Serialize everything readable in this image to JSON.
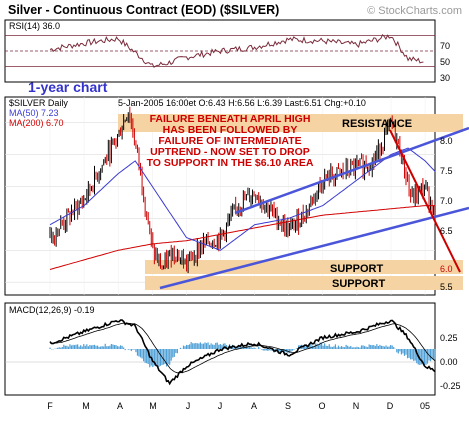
{
  "header": {
    "title": "Silver - Continuous Contract (EOD) ($SILVER)",
    "credit": "© StockCharts.com"
  },
  "rsi": {
    "label": "RSI(14) 36.0",
    "ticks": [
      "70",
      "50",
      "30"
    ],
    "note": "1-year chart"
  },
  "price": {
    "symbol": "$SILVER Daily",
    "quote": "5-Jan-2005 16:00et O:6.43 H:6.56 L:6.39 Last:6.51 Chg:+0.10",
    "ma50": "MA(50) 7.23",
    "ma200": "MA(200) 6.70",
    "ticks": [
      "8.0",
      "7.5",
      "7.0",
      "6.5",
      "6.0",
      "5.5"
    ],
    "annotation_lines": [
      "FAILURE BENEATH APRIL HIGH",
      "HAS BEEN FOLLOWED BY",
      "FAILURE OF INTERMEDIATE",
      "UPTREND - NOW SET TO DROP",
      "TO SUPPORT IN THE $6.10 AREA"
    ],
    "resistance_label": "RESISTANCE",
    "support_label_1": "SUPPORT",
    "support_label_2": "SUPPORT"
  },
  "macd": {
    "label": "MACD(12,26,9) -0.19",
    "ticks": [
      "0.25",
      "0.00",
      "-0.25"
    ]
  },
  "x_axis": {
    "labels": [
      "F",
      "M",
      "A",
      "M",
      "J",
      "J",
      "A",
      "S",
      "O",
      "N",
      "D",
      "05"
    ]
  },
  "colors": {
    "frame": "#000000",
    "title": "#000000",
    "credit": "#9a9a9a",
    "note": "#3333cc",
    "annotation": "#cc0000",
    "band": "#f5d3a3",
    "band_text": "#000000",
    "ma50": "#3b3bd1",
    "ma200": "#d10000",
    "channel": "#4a55d9",
    "rsi_line": "#7a2a3a",
    "rsi_ref": "#7a2a3a",
    "candle": "#000000",
    "candle_down": "#cc0000",
    "macd_hist": "#4d9fd6",
    "macd_line": "#000000"
  },
  "chart_data": [
    {
      "type": "line",
      "title": "RSI(14) 36.0",
      "xlabel": "",
      "ylabel": "",
      "ylim": [
        10,
        90
      ],
      "reference_lines": [
        70,
        50,
        30
      ],
      "x_labels": [
        "F",
        "M",
        "A",
        "M",
        "J",
        "J",
        "A",
        "S",
        "O",
        "N",
        "D",
        "05"
      ],
      "series": [
        {
          "name": "RSI(14)",
          "x": [
            0,
            1,
            2,
            3,
            3.5,
            4,
            5,
            6,
            7,
            8,
            9,
            10,
            10.5,
            11
          ],
          "values": [
            52,
            60,
            66,
            30,
            35,
            42,
            50,
            55,
            65,
            63,
            58,
            70,
            40,
            36
          ]
        }
      ]
    },
    {
      "type": "line",
      "title": "$SILVER Daily",
      "xlabel": "",
      "ylabel": "",
      "ylim": [
        5.3,
        8.4
      ],
      "grid": true,
      "x_labels": [
        "F",
        "M",
        "A",
        "M",
        "J",
        "J",
        "A",
        "S",
        "O",
        "N",
        "D",
        "05"
      ],
      "series": [
        {
          "name": "Price",
          "x": [
            0,
            0.5,
            1,
            1.5,
            2,
            2.3,
            2.6,
            3,
            3.3,
            3.6,
            4,
            4.5,
            5,
            5.5,
            6,
            6.5,
            7,
            7.5,
            8,
            8.5,
            9,
            9.5,
            10,
            10.3,
            10.6,
            11,
            11.3
          ],
          "values": [
            6.2,
            6.5,
            6.8,
            7.3,
            7.8,
            8.2,
            7.4,
            6.0,
            5.7,
            6.0,
            5.8,
            6.1,
            6.2,
            6.7,
            6.9,
            6.6,
            6.3,
            6.6,
            7.1,
            7.2,
            7.3,
            7.4,
            8.0,
            7.5,
            6.8,
            7.0,
            6.5
          ]
        },
        {
          "name": "MA(50) 7.23",
          "x": [
            0,
            1,
            2,
            2.5,
            3,
            4,
            5,
            6,
            7,
            8,
            9,
            10,
            10.5,
            11,
            11.3
          ],
          "values": [
            6.4,
            6.7,
            7.2,
            7.4,
            7.0,
            6.2,
            6.0,
            6.4,
            6.5,
            6.7,
            7.1,
            7.5,
            7.6,
            7.4,
            7.23
          ]
        },
        {
          "name": "MA(200) 6.70",
          "x": [
            0,
            1,
            2,
            3,
            4,
            5,
            6,
            7,
            8,
            9,
            10,
            11,
            11.3
          ],
          "values": [
            5.7,
            5.85,
            6.0,
            6.1,
            6.15,
            6.25,
            6.35,
            6.45,
            6.55,
            6.6,
            6.65,
            6.7,
            6.7
          ]
        }
      ],
      "annotations": [
        "RESISTANCE",
        "SUPPORT",
        "SUPPORT"
      ]
    },
    {
      "type": "line",
      "title": "MACD(12,26,9) -0.19",
      "xlabel": "",
      "ylabel": "",
      "ylim": [
        -0.4,
        0.4
      ],
      "x_labels": [
        "F",
        "M",
        "A",
        "M",
        "J",
        "J",
        "A",
        "S",
        "O",
        "N",
        "D",
        "05"
      ],
      "series": [
        {
          "name": "MACD",
          "x": [
            0,
            1,
            2,
            2.5,
            3,
            3.5,
            4,
            5,
            6,
            7,
            8,
            9,
            10,
            10.5,
            11,
            11.3
          ],
          "values": [
            0.05,
            0.15,
            0.25,
            0.2,
            -0.1,
            -0.3,
            -0.15,
            0.0,
            0.05,
            -0.05,
            0.1,
            0.15,
            0.25,
            0.1,
            -0.15,
            -0.19
          ]
        }
      ]
    }
  ]
}
